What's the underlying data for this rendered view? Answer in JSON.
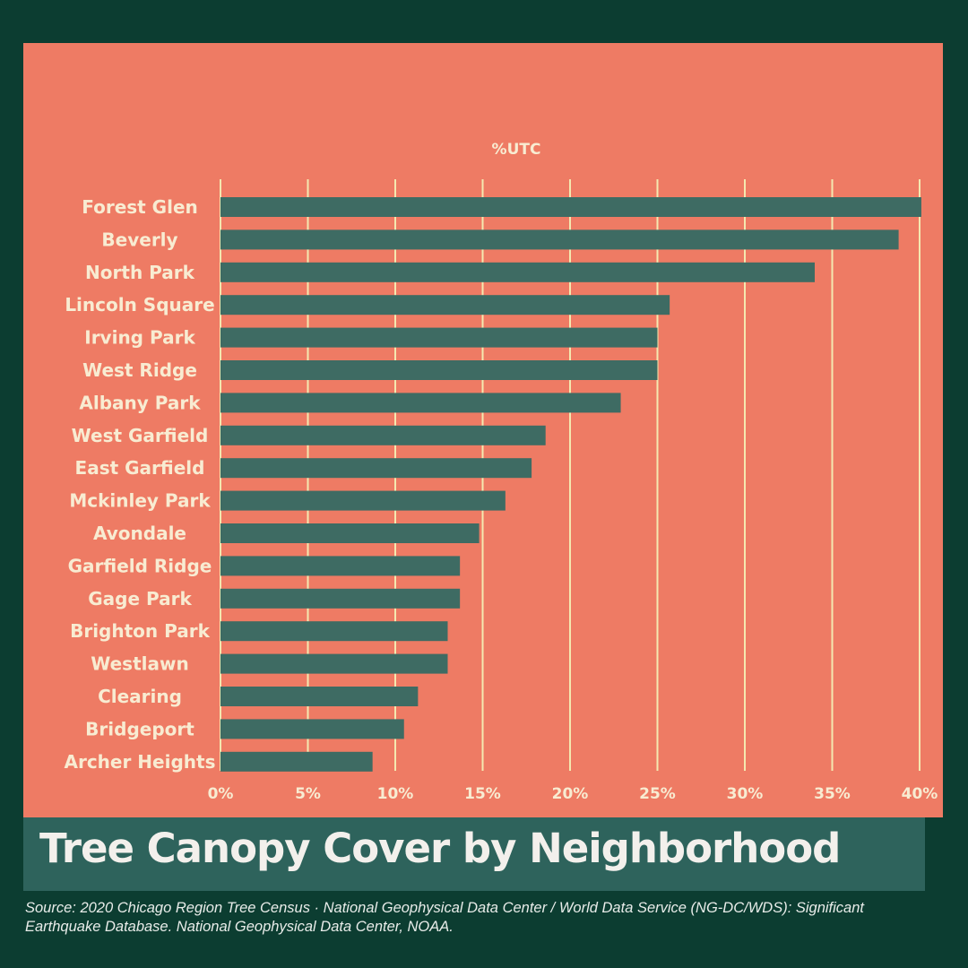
{
  "title": "Tree Canopy Cover by Neighborhood",
  "source": "Source: 2020 Chicago Region Tree Census · National Geophysical Data Center / World Data Service (NG-DC/WDS): Significant Earthquake Database. National Geophysical Data Center, NOAA.",
  "colors": {
    "page_background": "#0c3d31",
    "panel": "#ee7b64",
    "bar": "#3e6b63",
    "gridline": "#f4e8b0",
    "label_text": "#f8ecd2",
    "title_band": "#2e635c",
    "title_text": "#f3f0ec"
  },
  "chart_data": {
    "type": "bar",
    "orientation": "horizontal",
    "xlabel": "%UTC",
    "xlabel_position": "top",
    "ylabel": "",
    "xlim": [
      0,
      40
    ],
    "xticks": [
      "0%",
      "5%",
      "10%",
      "15%",
      "20%",
      "25%",
      "30%",
      "35%",
      "40%"
    ],
    "grid": true,
    "legend": "none",
    "categories": [
      "Forest Glen",
      "Beverly",
      "North Park",
      "Lincoln Square",
      "Irving Park",
      "West Ridge",
      "Albany Park",
      "West Garfield",
      "East Garfield",
      "Mckinley Park",
      "Avondale",
      "Garfield Ridge",
      "Gage Park",
      "Brighton Park",
      "Westlawn",
      "Clearing",
      "Bridgeport",
      "Archer Heights"
    ],
    "values": [
      40.1,
      38.8,
      34.0,
      25.7,
      25.0,
      25.0,
      22.9,
      18.6,
      17.8,
      16.3,
      14.8,
      13.7,
      13.7,
      13.0,
      13.0,
      11.3,
      10.5,
      8.7
    ]
  }
}
